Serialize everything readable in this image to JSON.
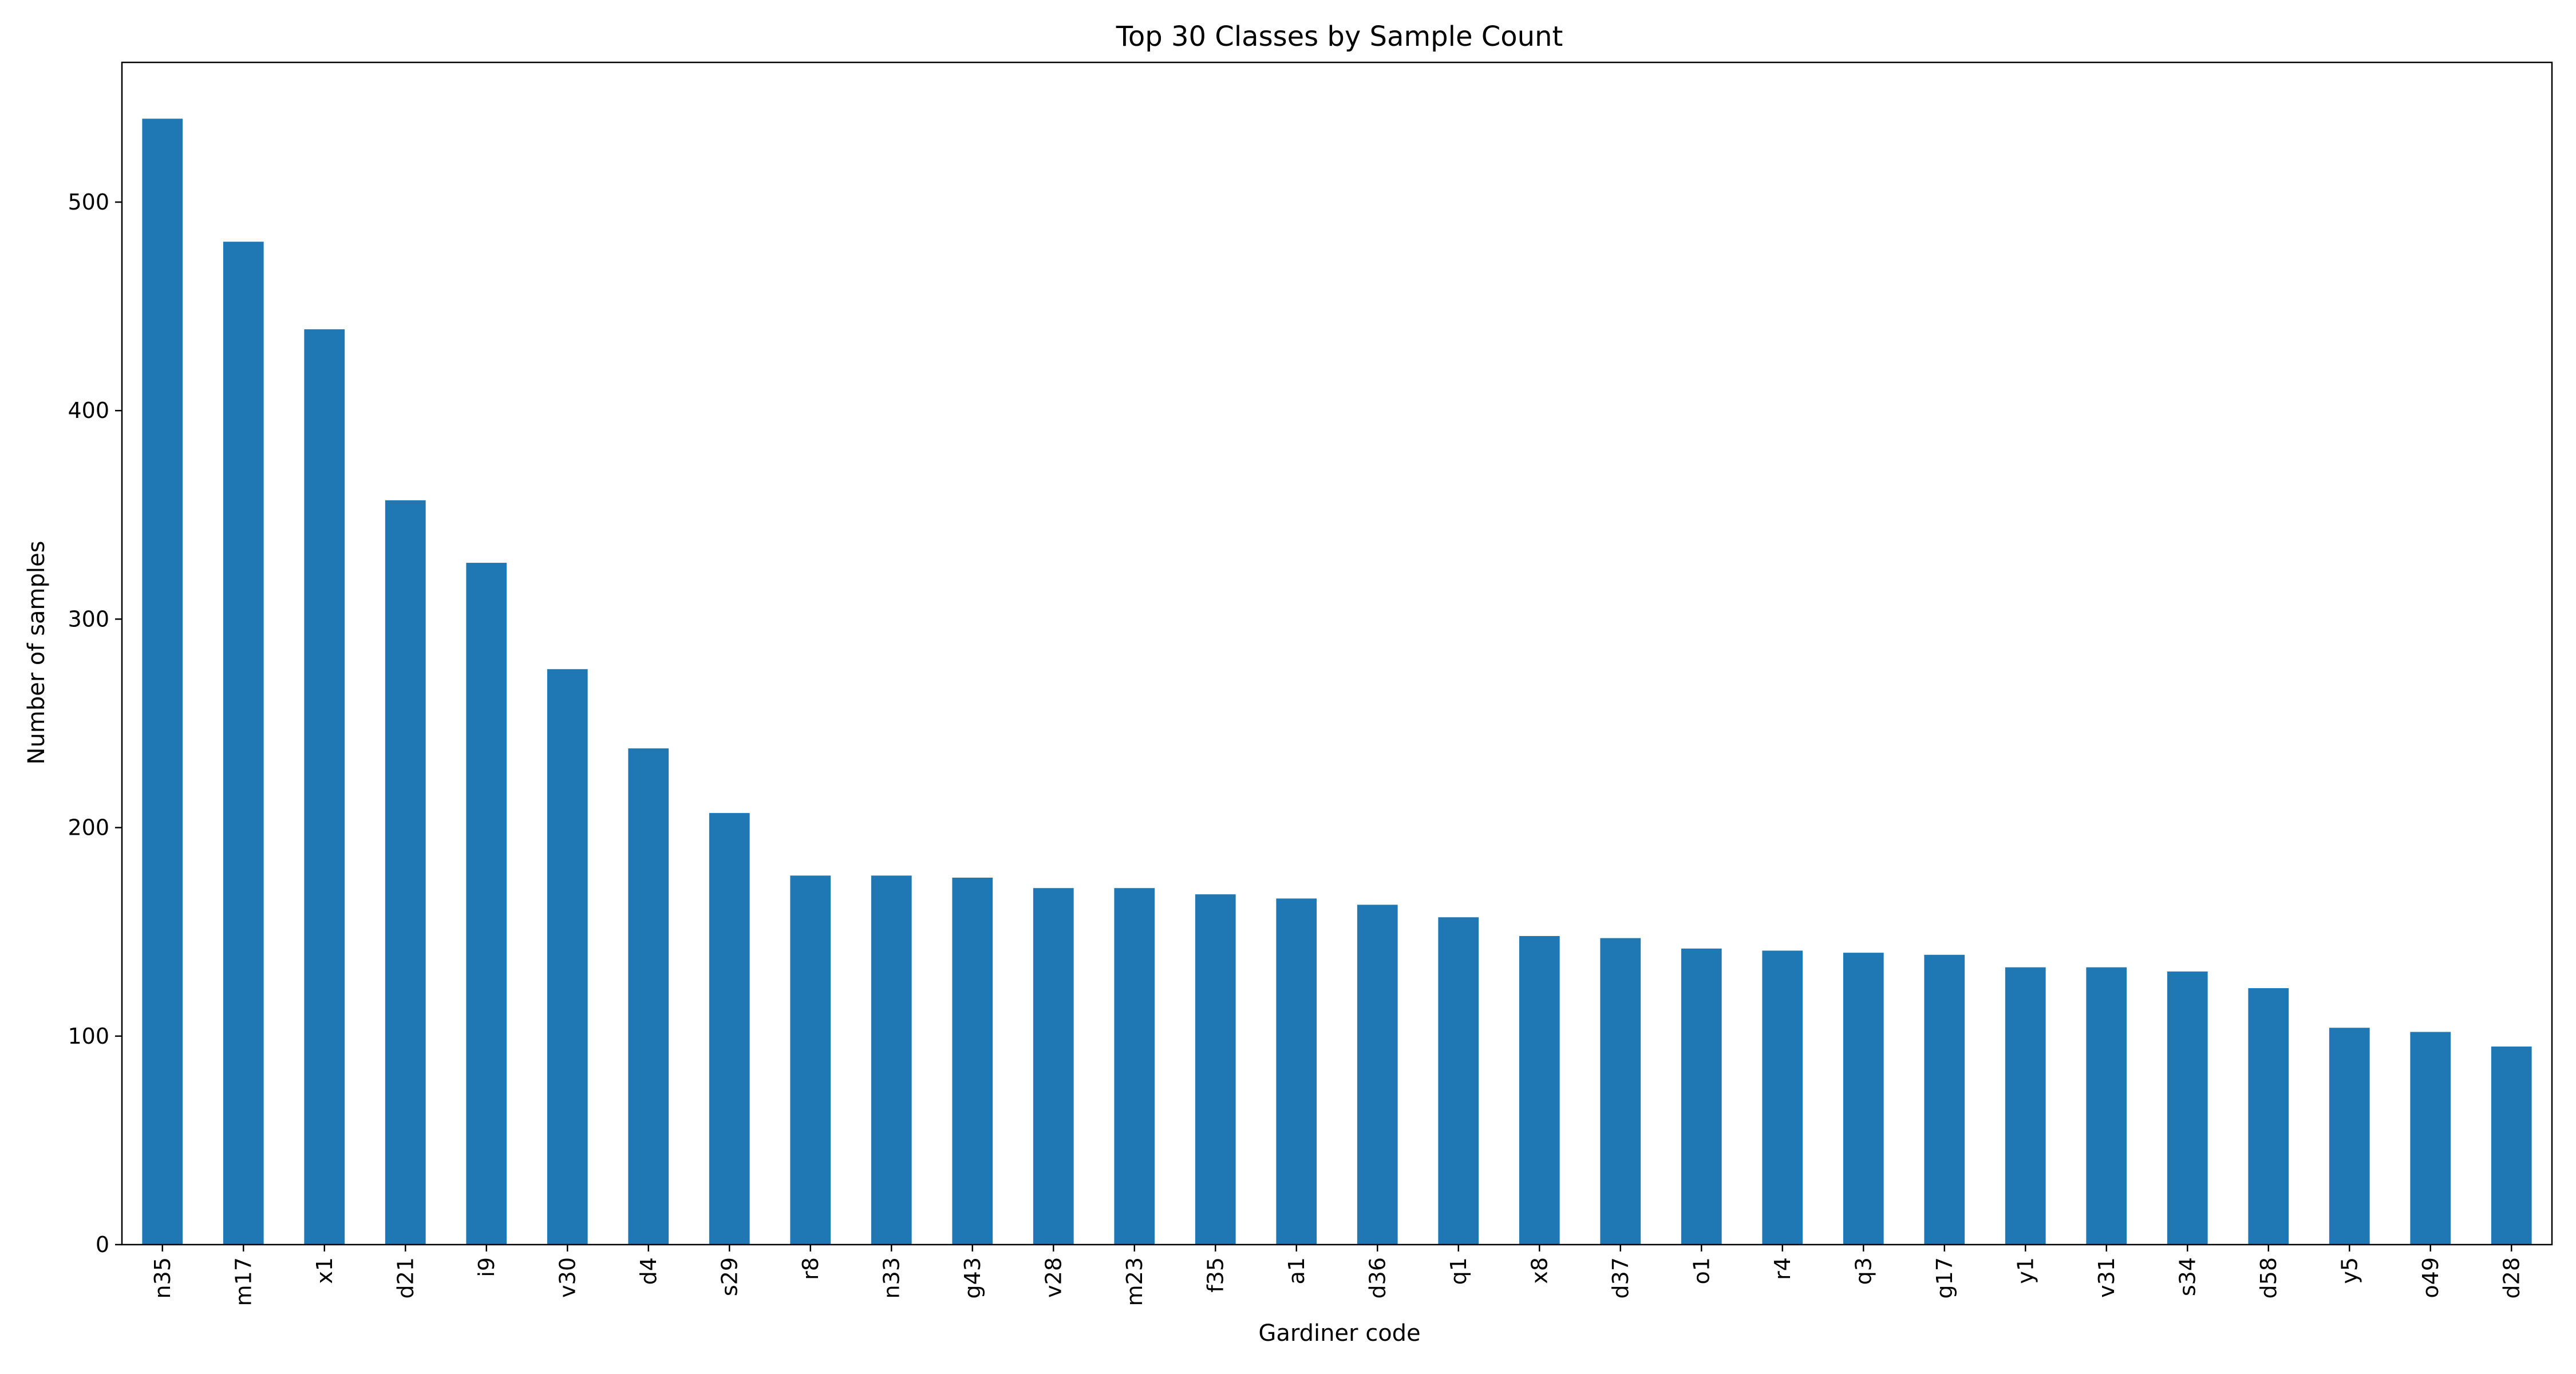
{
  "chart_data": {
    "type": "bar",
    "title": "Top 30 Classes by Sample Count",
    "xlabel": "Gardiner code",
    "ylabel": "Number of samples",
    "categories": [
      "n35",
      "m17",
      "x1",
      "d21",
      "i9",
      "v30",
      "d4",
      "s29",
      "r8",
      "n33",
      "g43",
      "v28",
      "m23",
      "f35",
      "a1",
      "d36",
      "q1",
      "x8",
      "d37",
      "o1",
      "r4",
      "q3",
      "g17",
      "y1",
      "v31",
      "s34",
      "d58",
      "y5",
      "o49",
      "d28"
    ],
    "values": [
      540,
      481,
      439,
      357,
      327,
      276,
      238,
      207,
      177,
      177,
      176,
      171,
      171,
      168,
      166,
      163,
      157,
      148,
      147,
      142,
      141,
      140,
      139,
      133,
      133,
      131,
      123,
      104,
      102,
      95
    ],
    "ylim": [
      0,
      567
    ],
    "yticks": [
      0,
      100,
      200,
      300,
      400,
      500
    ],
    "grid": false,
    "legend": "none",
    "colors": {
      "bar": "#1f77b4",
      "axes": "#000000",
      "background": "#ffffff"
    }
  }
}
